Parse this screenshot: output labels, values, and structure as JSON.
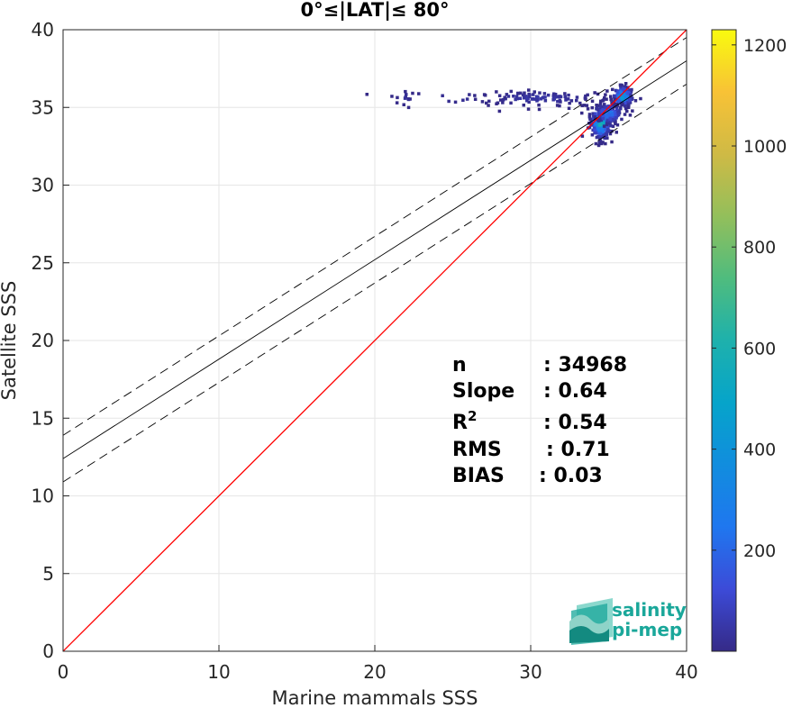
{
  "chart_data": {
    "type": "heatmap",
    "title": "0°≤|LAT|≤ 80°",
    "xlabel": "Marine mammals SSS",
    "ylabel": "Satellite SSS",
    "xlim": [
      0,
      40
    ],
    "ylim": [
      0,
      40
    ],
    "xticks": [
      0,
      10,
      20,
      30,
      40
    ],
    "yticks": [
      0,
      5,
      10,
      15,
      20,
      25,
      30,
      35,
      40
    ],
    "grid": true,
    "colormap": "parula",
    "colorbar": {
      "min": 0,
      "max": 1230,
      "ticks": [
        200,
        400,
        600,
        800,
        1000,
        1200
      ]
    },
    "lines": {
      "one_to_one": {
        "color": "#ff0000",
        "slope": 1,
        "intercept": 0
      },
      "regression": {
        "color": "#000000",
        "slope": 0.64,
        "intercept": 12.4
      },
      "upper_bound": {
        "color": "#000000",
        "slope": 0.64,
        "intercept": 13.9,
        "dashed": true
      },
      "lower_bound": {
        "color": "#000000",
        "slope": 0.64,
        "intercept": 10.9,
        "dashed": true
      }
    },
    "density_clusters": [
      {
        "x": 34.4,
        "y": 33.9,
        "sx": 0.35,
        "sy": 0.55,
        "count": 260,
        "peak": 0.55
      },
      {
        "x": 35.8,
        "y": 35.6,
        "sx": 0.35,
        "sy": 0.35,
        "count": 160,
        "peak": 0.45
      },
      {
        "x": 34.9,
        "y": 34.5,
        "sx": 0.5,
        "sy": 0.35,
        "count": 120,
        "peak": 0.25
      },
      {
        "x": 30.5,
        "y": 35.5,
        "sx": 2.3,
        "sy": 0.25,
        "count": 110,
        "peak": 0.05
      },
      {
        "x": 25.0,
        "y": 35.5,
        "sx": 2.5,
        "sy": 0.2,
        "count": 14,
        "peak": 0.03
      },
      {
        "x": 21.9,
        "y": 35.5,
        "sx": 0.2,
        "sy": 0.3,
        "count": 10,
        "peak": 0.03
      }
    ],
    "stats": [
      {
        "label": "n",
        "sup": "",
        "value": ": 34968"
      },
      {
        "label": "Slope",
        "sup": "",
        "value": ": 0.64"
      },
      {
        "label": "R",
        "sup": "2",
        "value": ": 0.54"
      },
      {
        "label": "RMS",
        "sup": "",
        "value": ": 0.71"
      },
      {
        "label": "BIAS",
        "sup": "",
        "value": ": 0.03"
      }
    ]
  },
  "logo": {
    "line1": "salinity",
    "line2": "pi-mep",
    "icon": "salinity-pimep-logo-icon"
  }
}
